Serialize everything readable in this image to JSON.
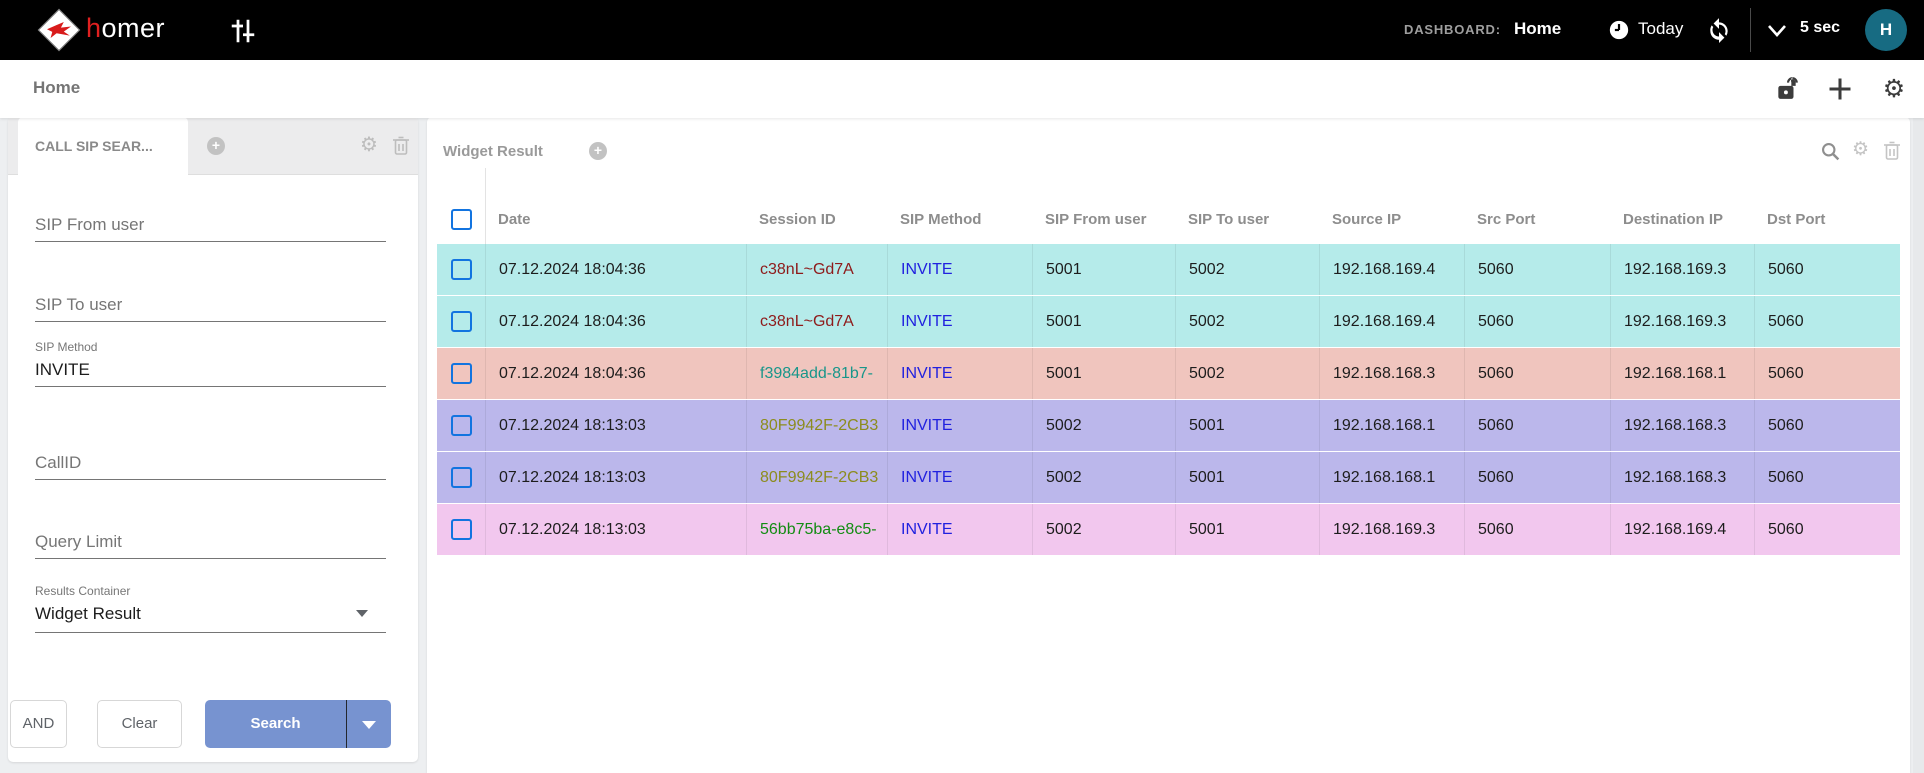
{
  "topbar": {
    "brand_first_letter": "h",
    "brand_rest": "omer",
    "dashboard_label": "DASHBOARD:",
    "dashboard_name": "Home",
    "time_range_label": "Today",
    "refresh_interval_label": "5 sec",
    "user_initial": "H"
  },
  "subheader": {
    "page_title": "Home"
  },
  "search_panel": {
    "tab_label": "CALL SIP SEAR...",
    "sip_from_user": {
      "placeholder": "SIP From user",
      "value": ""
    },
    "sip_to_user": {
      "placeholder": "SIP To user",
      "value": ""
    },
    "sip_method": {
      "label": "SIP Method",
      "value": "INVITE"
    },
    "callid": {
      "placeholder": "CallID",
      "value": ""
    },
    "query_limit": {
      "placeholder": "Query Limit",
      "value": ""
    },
    "results_container": {
      "label": "Results Container",
      "value": "Widget Result"
    },
    "and_button": "AND",
    "clear_button": "Clear",
    "search_button": "Search"
  },
  "widget": {
    "title": "Widget Result",
    "columns": [
      "Date",
      "Session ID",
      "SIP Method",
      "SIP From user",
      "SIP To user",
      "Source IP",
      "Src Port",
      "Destination IP",
      "Dst Port"
    ],
    "rows": [
      {
        "date": "07.12.2024 18:04:36",
        "session_id": "c38nL~Gd7A",
        "session_color": "#8e1a1a",
        "sip_method": "INVITE",
        "from_user": "5001",
        "to_user": "5002",
        "source_ip": "192.168.169.4",
        "src_port": "5060",
        "dest_ip": "192.168.169.3",
        "dst_port": "5060",
        "bg": "#b5ebea"
      },
      {
        "date": "07.12.2024 18:04:36",
        "session_id": "c38nL~Gd7A",
        "session_color": "#8e1a1a",
        "sip_method": "INVITE",
        "from_user": "5001",
        "to_user": "5002",
        "source_ip": "192.168.169.4",
        "src_port": "5060",
        "dest_ip": "192.168.169.3",
        "dst_port": "5060",
        "bg": "#b5ebea"
      },
      {
        "date": "07.12.2024 18:04:36",
        "session_id": "f3984add-81b7-",
        "session_color": "#18968a",
        "sip_method": "INVITE",
        "from_user": "5001",
        "to_user": "5002",
        "source_ip": "192.168.168.3",
        "src_port": "5060",
        "dest_ip": "192.168.168.1",
        "dst_port": "5060",
        "bg": "#f0c5be"
      },
      {
        "date": "07.12.2024 18:13:03",
        "session_id": "80F9942F-2CB3",
        "session_color": "#8c8c1e",
        "sip_method": "INVITE",
        "from_user": "5002",
        "to_user": "5001",
        "source_ip": "192.168.168.1",
        "src_port": "5060",
        "dest_ip": "192.168.168.3",
        "dst_port": "5060",
        "bg": "#bbb7eb"
      },
      {
        "date": "07.12.2024 18:13:03",
        "session_id": "80F9942F-2CB3",
        "session_color": "#8c8c1e",
        "sip_method": "INVITE",
        "from_user": "5002",
        "to_user": "5001",
        "source_ip": "192.168.168.1",
        "src_port": "5060",
        "dest_ip": "192.168.168.3",
        "dst_port": "5060",
        "bg": "#bbb7eb"
      },
      {
        "date": "07.12.2024 18:13:03",
        "session_id": "56bb75ba-e8c5-",
        "session_color": "#128c12",
        "sip_method": "INVITE",
        "from_user": "5002",
        "to_user": "5001",
        "source_ip": "192.168.169.3",
        "src_port": "5060",
        "dest_ip": "192.168.169.4",
        "dst_port": "5060",
        "bg": "#f2c7ee"
      }
    ]
  },
  "colors": {
    "accent_blue": "#7793d0",
    "link_blue": "#2121df",
    "checkbox_blue": "#1274e0",
    "avatar_teal": "#176b82",
    "row_cyan": "#b5ebea",
    "row_salmon": "#f0c5be",
    "row_lavender": "#bbb7eb",
    "row_pink": "#f2c7ee"
  }
}
